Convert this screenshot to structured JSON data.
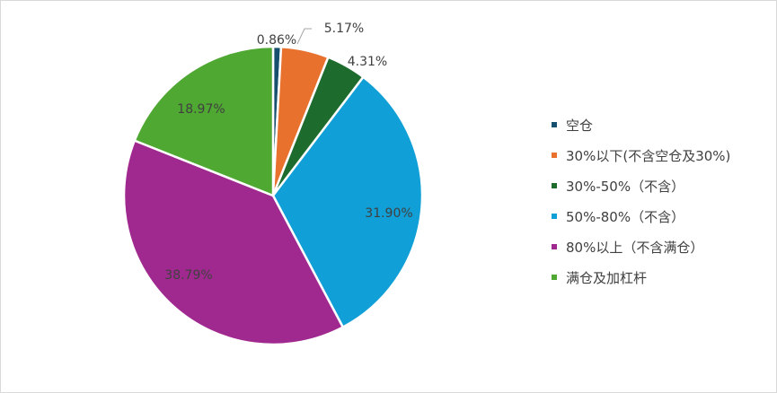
{
  "chart_data": {
    "type": "pie",
    "start_angle_deg": 0,
    "direction": "clockwise",
    "slices": [
      {
        "label": "空仓",
        "value": 0.86,
        "data_label": "0.86%",
        "color": "#17506e"
      },
      {
        "label": "30%以下(不含空仓及30%)",
        "value": 5.17,
        "data_label": "5.17%",
        "color": "#e8712e"
      },
      {
        "label": "30%-50%（不含）",
        "value": 4.31,
        "data_label": "4.31%",
        "color": "#1e6b2e"
      },
      {
        "label": "50%-80%（不含）",
        "value": 31.9,
        "data_label": "31.90%",
        "color": "#109fd6"
      },
      {
        "label": "80%以上（不含满仓）",
        "value": 38.79,
        "data_label": "38.79%",
        "color": "#a0298f"
      },
      {
        "label": "满仓及加杠杆",
        "value": 18.97,
        "data_label": "18.97%",
        "color": "#4fa832"
      }
    ],
    "legend_position": "right",
    "label_color": "#404040"
  }
}
